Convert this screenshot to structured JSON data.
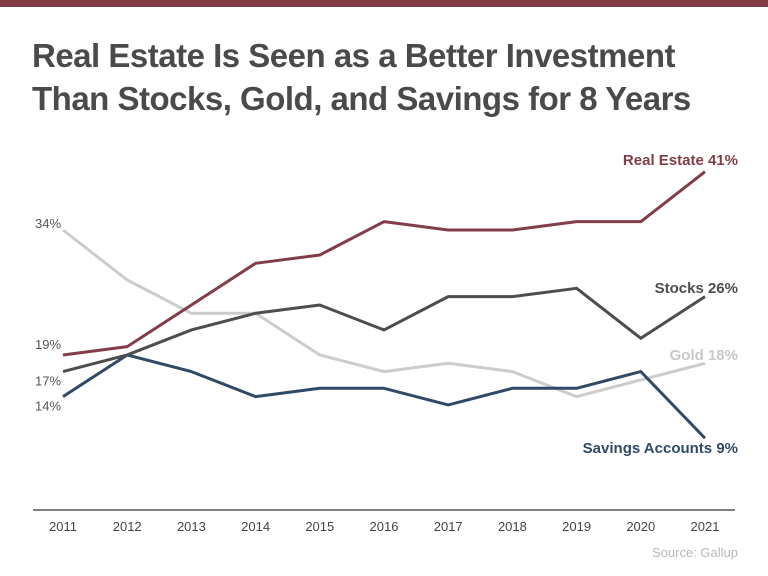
{
  "title_lines": [
    "Real Estate Is Seen as a Better Investment",
    "Than Stocks, Gold, and Savings for 8 Years"
  ],
  "source": "Source: Gallup",
  "colors": {
    "top_bar": "#823d46",
    "title": "#4a4a4a"
  },
  "chart_data": {
    "type": "line",
    "categories": [
      "2011",
      "2012",
      "2013",
      "2014",
      "2015",
      "2016",
      "2017",
      "2018",
      "2019",
      "2020",
      "2021"
    ],
    "ylim": [
      5,
      45
    ],
    "grid": false,
    "legend": "direct labels at line ends",
    "series": [
      {
        "name": "Real Estate",
        "color": "#823d46",
        "start_label": "19%",
        "end_label": "Real Estate 41%",
        "values": [
          19,
          20,
          25,
          30,
          31,
          35,
          34,
          34,
          35,
          35,
          41
        ]
      },
      {
        "name": "Stocks",
        "color": "#4d4d4d",
        "start_label": "17%",
        "end_label": "Stocks 26%",
        "values": [
          17,
          19,
          22,
          24,
          25,
          22,
          26,
          26,
          27,
          21,
          26
        ]
      },
      {
        "name": "Gold",
        "color": "#cccccc",
        "start_label": "34%",
        "end_label": "Gold 18%",
        "values": [
          34,
          28,
          24,
          24,
          19,
          17,
          18,
          17,
          14,
          16,
          18
        ]
      },
      {
        "name": "Savings Accounts",
        "color": "#2f4a66",
        "start_label": "14%",
        "end_label": "Savings Accounts 9%",
        "values": [
          14,
          19,
          17,
          14,
          15,
          15,
          13,
          15,
          15,
          17,
          9
        ]
      }
    ]
  }
}
